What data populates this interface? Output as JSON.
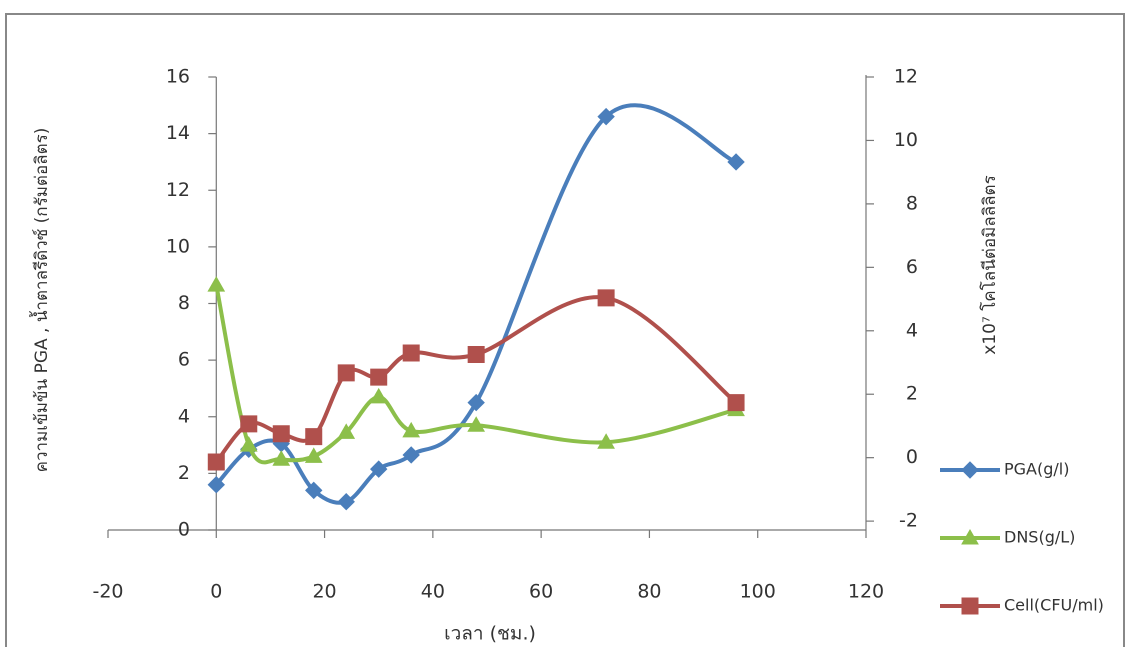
{
  "chart_data": {
    "type": "line",
    "x_label": "เวลา (ชม.)",
    "y_label": "ความเข้มข้น PGA , น้ำตาลรีดิวซ์ (กรัมต่อลิตร)",
    "y2_label": "x10⁷ โคโลนีต่อมิลลิลิตร",
    "xlim": [
      -20,
      120
    ],
    "xticks": [
      -20,
      0,
      20,
      40,
      60,
      80,
      100,
      120
    ],
    "ylim": [
      0,
      16
    ],
    "yticks": [
      0,
      2,
      4,
      6,
      8,
      10,
      12,
      14,
      16
    ],
    "y2lim": [
      -2.28,
      12
    ],
    "y2ticks": [
      -2,
      0,
      2,
      4,
      6,
      8,
      10,
      12
    ],
    "x": [
      0,
      6,
      12,
      18,
      24,
      30,
      36,
      48,
      72,
      96
    ],
    "series": [
      {
        "name": "PGA(g/l)",
        "color": "#4a7ebb",
        "marker": "diamond",
        "values": [
          1.6,
          2.85,
          3.05,
          1.4,
          1.0,
          2.15,
          2.65,
          4.5,
          14.6,
          13.0
        ]
      },
      {
        "name": "DNS(g/L)",
        "color": "#8cbf4a",
        "marker": "triangle",
        "values": [
          8.65,
          3.0,
          2.5,
          2.6,
          3.45,
          4.7,
          3.5,
          3.7,
          3.1,
          4.25
        ]
      },
      {
        "name": "Cell(CFU/ml)",
        "color": "#b0504c",
        "marker": "square",
        "values": [
          2.4,
          3.75,
          3.4,
          3.3,
          5.55,
          5.4,
          6.25,
          6.2,
          8.2,
          4.5
        ]
      }
    ],
    "legend": "right"
  }
}
